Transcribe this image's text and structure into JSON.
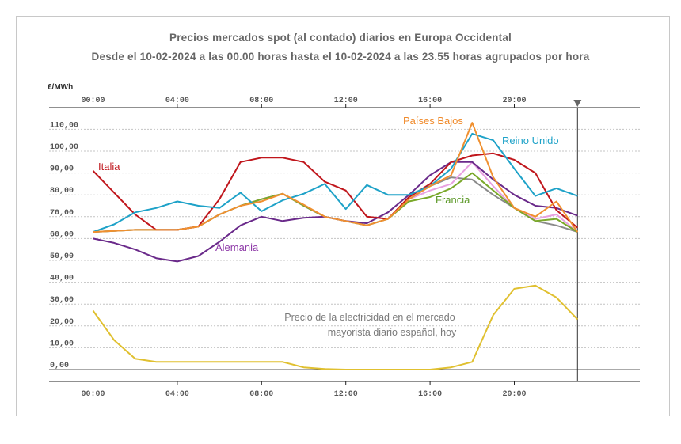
{
  "title": "Precios mercados spot (al contado) diarios en Europa Occidental",
  "subtitle": "Desde el 10-02-2024 a las 00.00 horas hasta el 10-02-2024 a las 23.55 horas agrupados por hora",
  "chart_data": {
    "type": "line",
    "title": "Precios mercados spot (al contado) diarios en Europa Occidental",
    "subtitle": "Desde el 10-02-2024 a las 00.00 horas hasta el 10-02-2024 a las 23.55 horas agrupados por hora",
    "ylabel": "€/MWh",
    "ylim": [
      -5,
      117
    ],
    "xlim": [
      0,
      26
    ],
    "x_tick_values": [
      0,
      4,
      8,
      12,
      16,
      20
    ],
    "x_tick_labels": [
      "00:00",
      "04:00",
      "08:00",
      "12:00",
      "16:00",
      "20:00"
    ],
    "y_tick_values": [
      0,
      10,
      20,
      30,
      40,
      50,
      60,
      70,
      80,
      90,
      100,
      110
    ],
    "y_tick_labels": [
      "0,00",
      "10,00",
      "20,00",
      "30,00",
      "40,00",
      "50,00",
      "60,00",
      "70,00",
      "80,00",
      "90,00",
      "100,00",
      "110,00"
    ],
    "marker_hour": 23,
    "grid": "horizontal dashed",
    "series": [
      {
        "name": "",
        "color": "#8a8a8a",
        "label_color": "#8a8a8a",
        "x": [
          0,
          1,
          2,
          3,
          4,
          5,
          6,
          7,
          8,
          9,
          10,
          11,
          12,
          13,
          14,
          15,
          16,
          17,
          18,
          19,
          20,
          21,
          22,
          23
        ],
        "y": [
          63,
          63.5,
          64,
          64,
          64,
          65.5,
          71,
          75,
          78,
          80.5,
          75,
          70,
          68,
          66,
          69,
          78,
          84,
          88,
          87,
          80,
          74,
          68,
          66,
          63
        ]
      },
      {
        "name": "",
        "color": "#e8a0e0",
        "label_color": "#e8a0e0",
        "x": [
          0,
          1,
          2,
          3,
          4,
          5,
          6,
          7,
          8,
          9,
          10,
          11,
          12,
          13,
          14,
          15,
          16,
          17,
          18,
          19,
          20,
          21,
          22,
          23
        ],
        "y": [
          63,
          63.5,
          64,
          64,
          64,
          65.5,
          71,
          75,
          78,
          80.5,
          75,
          70,
          68,
          66,
          69,
          78,
          82,
          85,
          95,
          84,
          74,
          69,
          71,
          63
        ]
      },
      {
        "name": "Francia",
        "color": "#7aa82a",
        "label_color": "#5e9a2a",
        "x": [
          0,
          1,
          2,
          3,
          4,
          5,
          6,
          7,
          8,
          9,
          10,
          11,
          12,
          13,
          14,
          15,
          16,
          17,
          18,
          19,
          20,
          21,
          22,
          23
        ],
        "y": [
          63,
          63.5,
          64,
          64,
          64,
          65.5,
          71,
          75,
          78,
          80.5,
          75,
          70,
          68,
          66,
          69,
          77,
          79,
          83,
          90,
          82,
          74,
          68,
          69,
          63
        ]
      },
      {
        "name": "Alemania",
        "color": "#6a2a8a",
        "label_color": "#8e3aa8",
        "x": [
          0,
          1,
          2,
          3,
          4,
          5,
          6,
          7,
          8,
          9,
          10,
          11,
          12,
          13,
          14,
          15,
          16,
          17,
          18,
          19,
          20,
          21,
          22,
          23
        ],
        "y": [
          60,
          58,
          55,
          51,
          49.5,
          52,
          58.5,
          66,
          70,
          68,
          69.5,
          70,
          68,
          67,
          72,
          80,
          89,
          95,
          95,
          87,
          80,
          75,
          74,
          70.5
        ]
      },
      {
        "name": "Italia",
        "color": "#c0161c",
        "label_color": "#c0161c",
        "x": [
          0,
          1,
          2,
          3,
          4,
          5,
          6,
          7,
          8,
          9,
          10,
          11,
          12,
          13,
          14,
          15,
          16,
          17,
          18,
          19,
          20,
          21,
          22,
          23
        ],
        "y": [
          91,
          81,
          71,
          64,
          64,
          65.5,
          78,
          95,
          97,
          97,
          95,
          86,
          82,
          70,
          69,
          79,
          85,
          95,
          98,
          99,
          96,
          90,
          73,
          65
        ]
      },
      {
        "name": "Reino Unido",
        "color": "#1ea2c8",
        "label_color": "#1ea2c8",
        "x": [
          0,
          1,
          2,
          3,
          4,
          5,
          6,
          7,
          8,
          9,
          10,
          11,
          12,
          13,
          14,
          15,
          16,
          17,
          18,
          19,
          20,
          21,
          22,
          23
        ],
        "y": [
          63,
          66.5,
          72,
          74,
          77,
          75,
          74,
          81,
          72.5,
          77.5,
          80.5,
          85,
          73.5,
          84.5,
          80,
          80,
          84,
          92,
          108,
          105,
          92,
          79.5,
          83,
          79.5
        ]
      },
      {
        "name": "Países Bajos",
        "color": "#f09030",
        "label_color": "#f08a2a",
        "x": [
          0,
          1,
          2,
          3,
          4,
          5,
          6,
          7,
          8,
          9,
          10,
          11,
          12,
          13,
          14,
          15,
          16,
          17,
          18,
          19,
          20,
          21,
          22,
          23
        ],
        "y": [
          63,
          63.5,
          64,
          64,
          64,
          65.5,
          71,
          75,
          77,
          80.5,
          75.5,
          70,
          68,
          66,
          69,
          78,
          84,
          89,
          113,
          88,
          74,
          70,
          77,
          63
        ]
      },
      {
        "name": "Precio de la electricidad en el mercado mayorista diario español, hoy",
        "color": "#e0c030",
        "label_color": "#7a7a7a",
        "x": [
          0,
          1,
          2,
          3,
          4,
          5,
          6,
          7,
          8,
          9,
          10,
          11,
          12,
          13,
          14,
          15,
          16,
          17,
          18,
          19,
          20,
          21,
          22,
          23
        ],
        "y": [
          27,
          13.5,
          5,
          3.5,
          3.5,
          3.5,
          3.5,
          3.5,
          3.5,
          3.5,
          1,
          0.3,
          0,
          0,
          0,
          0,
          0,
          1,
          3.5,
          25,
          37,
          38.5,
          33,
          23
        ]
      }
    ],
    "labels": {
      "italia": "Italia",
      "alemania": "Alemania",
      "paises_bajos": "Países Bajos",
      "reino_unido": "Reino Unido",
      "francia": "Francia",
      "espana_line1": "Precio de la electricidad en el mercado",
      "espana_line2": "mayorista diario español, hoy"
    }
  }
}
